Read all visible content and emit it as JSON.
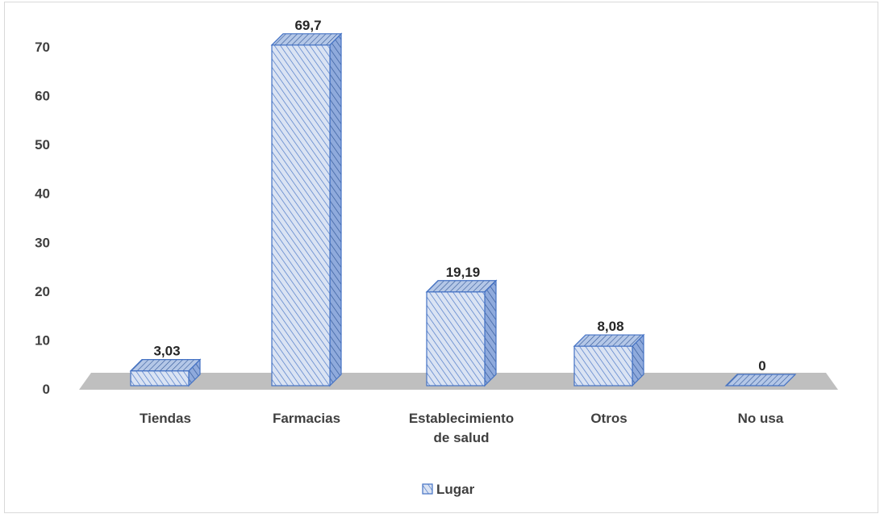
{
  "chart_data": {
    "type": "bar",
    "categories": [
      "Tiendas",
      "Farmacias",
      "Establecimiento de salud",
      "Otros",
      "No usa"
    ],
    "category_lines": [
      [
        "Tiendas"
      ],
      [
        "Farmacias"
      ],
      [
        "Establecimiento",
        "de salud"
      ],
      [
        "Otros"
      ],
      [
        "No usa"
      ]
    ],
    "series": [
      {
        "name": "Lugar",
        "values": [
          3.03,
          69.7,
          19.19,
          8.08,
          0
        ]
      }
    ],
    "data_labels": [
      "3,03",
      "69,7",
      "19,19",
      "8,08",
      "0"
    ],
    "yticks": [
      0,
      10,
      20,
      30,
      40,
      50,
      60,
      70
    ],
    "ylim": [
      0,
      70
    ],
    "title": "",
    "xlabel": "",
    "ylabel": "",
    "grid": false,
    "legend_position": "bottom",
    "style": "3d-hatched-column",
    "colors": {
      "bar_fill": "#dae3f3",
      "bar_stroke": "#4472c4",
      "hatch": "#4472c4",
      "floor": "#bfbfbf"
    }
  }
}
